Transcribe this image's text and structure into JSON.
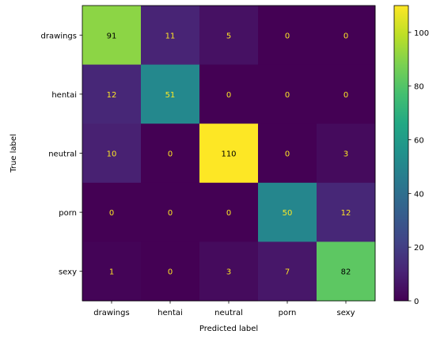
{
  "chart_data": {
    "type": "heatmap",
    "xlabel": "Predicted label",
    "ylabel": "True label",
    "x_categories": [
      "drawings",
      "hentai",
      "neutral",
      "porn",
      "sexy"
    ],
    "y_categories": [
      "drawings",
      "hentai",
      "neutral",
      "porn",
      "sexy"
    ],
    "values": [
      [
        91,
        11,
        5,
        0,
        0
      ],
      [
        12,
        51,
        0,
        0,
        0
      ],
      [
        10,
        0,
        110,
        0,
        3
      ],
      [
        0,
        0,
        0,
        50,
        12
      ],
      [
        1,
        0,
        3,
        7,
        82
      ]
    ],
    "colormap": "viridis",
    "vmin": 0,
    "vmax": 110,
    "colorbar_ticks": [
      0,
      20,
      40,
      60,
      80,
      100
    ],
    "text_color_low": "#fde725",
    "text_color_high": "#000000"
  }
}
